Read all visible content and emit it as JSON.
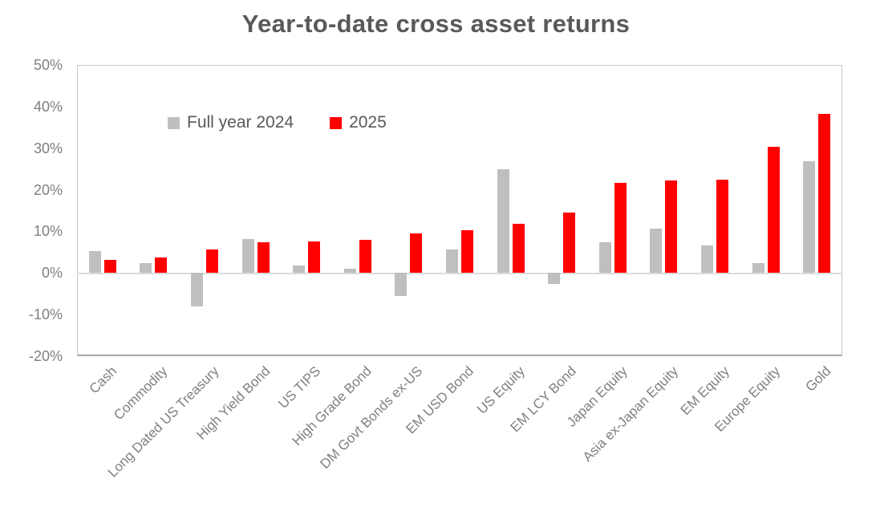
{
  "title": "Year-to-date cross asset returns",
  "legend": [
    {
      "label": "Full year 2024",
      "color": "#BFBFBF"
    },
    {
      "label": "2025",
      "color": "#FF0000"
    }
  ],
  "colors": {
    "bar_2024": "#BFBFBF",
    "bar_2025": "#FF0000",
    "title_text": "#595959",
    "axis_text": "#7F7F7F",
    "plot_border": "#C6C6C6",
    "zero_line": "#DCDCDC"
  },
  "chart_data": {
    "type": "bar",
    "title": "Year-to-date cross asset returns",
    "categories": [
      "Cash",
      "Commodity",
      "Long Dated US Treasury",
      "High Yield Bond",
      "US TIPS",
      "High Grade Bond",
      "DM Govt Bonds ex-US",
      "EM USD Bond",
      "US Equity",
      "EM LCY Bond",
      "Japan Equity",
      "Asia ex-Japan Equity",
      "EM Equity",
      "Europe Equity",
      "Gold"
    ],
    "series": [
      {
        "name": "Full year 2024",
        "color": "#BFBFBF",
        "values": [
          5.3,
          2.3,
          -8.0,
          8.1,
          1.8,
          1.0,
          -5.5,
          5.6,
          25.0,
          -2.7,
          7.3,
          10.6,
          6.7,
          2.3,
          26.8
        ]
      },
      {
        "name": "2025",
        "color": "#FF0000",
        "values": [
          3.1,
          3.7,
          5.6,
          7.3,
          7.5,
          7.9,
          9.6,
          10.3,
          11.8,
          14.5,
          21.7,
          22.2,
          22.5,
          30.3,
          38.3
        ]
      }
    ],
    "xlabel": "",
    "ylabel": "",
    "ylim": [
      -20,
      50
    ],
    "yticks": [
      "50%",
      "40%",
      "30%",
      "20%",
      "10%",
      "0%",
      "-10%",
      "-20%"
    ],
    "ytick_values": [
      50,
      40,
      30,
      20,
      10,
      0,
      -10,
      -20
    ],
    "grid": false,
    "zero_line": true,
    "legend_position": "top-inside",
    "x_label_rotation_deg": 45,
    "value_unit": "percent"
  }
}
